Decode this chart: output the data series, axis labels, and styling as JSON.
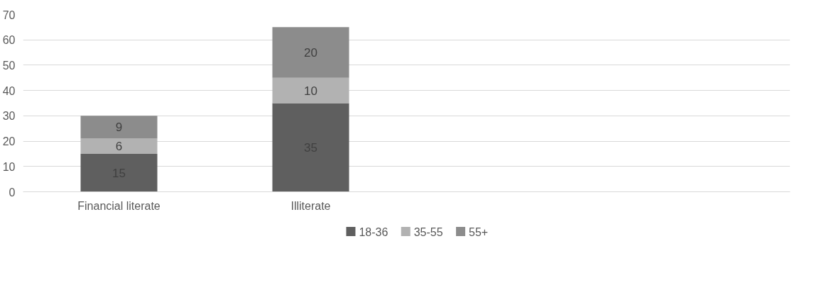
{
  "chart_data": {
    "type": "bar",
    "stacked": true,
    "categories": [
      "Financial literate",
      "Illiterate",
      null,
      null
    ],
    "series": [
      {
        "name": "18-36",
        "color": "#5f5f5f",
        "values": [
          15,
          35,
          null,
          null
        ]
      },
      {
        "name": "35-55",
        "color": "#b2b2b2",
        "values": [
          6,
          10,
          null,
          null
        ]
      },
      {
        "name": "55+",
        "color": "#8c8c8c",
        "values": [
          9,
          20,
          null,
          null
        ]
      }
    ],
    "ylim": [
      0,
      70
    ],
    "yticks": [
      0,
      10,
      20,
      30,
      40,
      50,
      60,
      70
    ],
    "grid": "y",
    "legend": "bottom",
    "data_labels": true
  }
}
